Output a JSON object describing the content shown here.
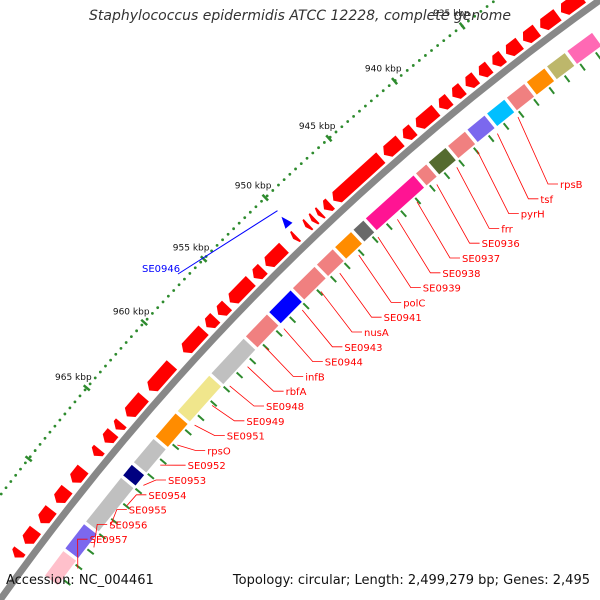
{
  "title": "Staphylococcus epidermidis ATCC 12228, complete genome",
  "footer": {
    "accession": "Accession: NC_004461",
    "topology": "Topology: circular; Length: 2,499,279 bp; Genes: 2,495"
  },
  "colors": {
    "backbone": "#888888",
    "forward_gene": "#ff0000",
    "tick": "#2e8b2e",
    "label_line": "#ff0000",
    "label_text": "#ff0000",
    "highlight": "#0000ff"
  },
  "scale_labels": [
    "935 kbp",
    "940 kbp",
    "945 kbp",
    "950 kbp",
    "955 kbp",
    "960 kbp",
    "965 kbp"
  ],
  "highlight_label": "SE0946",
  "gene_labels": [
    "rpsB",
    "tsf",
    "pyrH",
    "frr",
    "SE0936",
    "SE0937",
    "SE0938",
    "SE0939",
    "polC",
    "SE0941",
    "nusA",
    "SE0943",
    "SE0944",
    "infB",
    "rbfA",
    "SE0948",
    "SE0949",
    "SE0951",
    "rpsO",
    "SE0952",
    "SE0953",
    "SE0954",
    "SE0955",
    "SE0956",
    "SE0957"
  ],
  "cog_segments": [
    {
      "color": "#ff69b4"
    },
    {
      "color": "#bdb76b"
    },
    {
      "color": "#ff8c00"
    },
    {
      "color": "#f08080"
    },
    {
      "color": "#00bfff"
    },
    {
      "color": "#7b68ee"
    },
    {
      "color": "#f08080"
    },
    {
      "color": "#556b2f"
    },
    {
      "color": "#f08080"
    },
    {
      "color": "#ff1493"
    },
    {
      "color": "#696969"
    },
    {
      "color": "#ff8c00"
    },
    {
      "color": "#f08080"
    },
    {
      "color": "#f08080"
    },
    {
      "color": "#0000ff"
    },
    {
      "color": "#f08080"
    },
    {
      "color": "#c0c0c0"
    },
    {
      "color": "#f0e68c"
    },
    {
      "color": "#ff8c00"
    },
    {
      "color": "#c0c0c0"
    },
    {
      "color": "#000080"
    },
    {
      "color": "#c0c0c0"
    },
    {
      "color": "#7b68ee"
    },
    {
      "color": "#ffc0cb"
    }
  ]
}
